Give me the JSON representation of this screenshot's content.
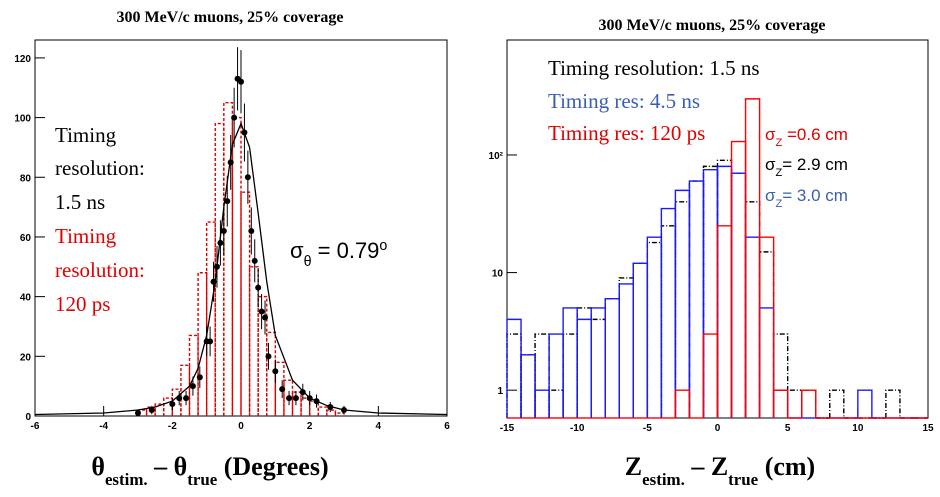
{
  "chart_data": [
    {
      "type": "scatter",
      "title": "300 MeV/c muons, 25% coverage",
      "xlabel": [
        {
          "text": "θ"
        },
        {
          "text": "estim.",
          "sub": true
        },
        {
          "text": " – θ"
        },
        {
          "text": "true",
          "sub": true
        },
        {
          "text": " (Degrees)"
        }
      ],
      "xlim": [
        -6,
        6
      ],
      "xticks": [
        -6,
        -4,
        -2,
        0,
        2,
        4,
        6
      ],
      "ylim": [
        0,
        126
      ],
      "yticks": [
        0,
        20,
        40,
        60,
        80,
        100,
        120
      ],
      "series": [
        {
          "style": "step",
          "color": "#e00000",
          "dashed": true,
          "bins": [
            -3,
            -2.75,
            -2.5,
            -2.25,
            -2,
            -1.75,
            -1.5,
            -1.25,
            -1,
            -0.75,
            -0.5,
            -0.25,
            0,
            0.25,
            0.5,
            0.75,
            1,
            1.25,
            1.5,
            1.75,
            2,
            2.25,
            2.5,
            2.75,
            3
          ],
          "values": [
            2,
            3,
            4,
            6,
            9,
            17,
            27,
            48,
            65,
            98,
            105,
            100,
            75,
            50,
            40,
            28,
            18,
            12,
            8,
            6,
            5,
            3,
            2,
            1
          ]
        },
        {
          "style": "line",
          "color": "#000000",
          "x": [
            -6,
            -4,
            -3,
            -2.5,
            -2,
            -1.5,
            -1.25,
            -1,
            -0.75,
            -0.5,
            -0.25,
            0,
            0.25,
            0.5,
            0.75,
            1,
            1.5,
            2,
            2.5,
            3,
            4,
            6
          ],
          "values": [
            0.5,
            1,
            2,
            3,
            5,
            10,
            16,
            27,
            45,
            70,
            91,
            98,
            90,
            68,
            45,
            27,
            12,
            6,
            3.5,
            2,
            1,
            0.5
          ]
        },
        {
          "style": "points",
          "color": "#000000",
          "x": [
            -3,
            -2.6,
            -2,
            -1.8,
            -1.6,
            -1.4,
            -1.2,
            -1,
            -0.9,
            -0.8,
            -0.7,
            -0.6,
            -0.5,
            -0.4,
            -0.3,
            -0.2,
            -0.1,
            0,
            0.1,
            0.2,
            0.3,
            0.4,
            0.5,
            0.6,
            0.7,
            0.8,
            1,
            1.2,
            1.4,
            1.6,
            1.8,
            2,
            2.2,
            2.6,
            3
          ],
          "values": [
            1,
            2,
            4,
            6,
            6,
            10,
            13,
            25,
            25,
            45,
            50,
            58,
            62,
            72,
            85,
            100,
            113,
            112,
            95,
            80,
            62,
            52,
            43,
            35,
            33,
            20,
            15,
            9,
            6,
            6,
            8,
            6,
            5,
            3,
            2
          ],
          "errors": [
            1,
            1.4,
            2,
            2.4,
            2.4,
            3.2,
            3.6,
            5,
            5,
            6.7,
            7,
            7.6,
            7.9,
            8.5,
            9.2,
            10,
            10.6,
            10.6,
            9.7,
            8.9,
            7.9,
            7.2,
            6.6,
            5.9,
            5.7,
            4.5,
            3.9,
            3,
            2.4,
            2.4,
            2.8,
            2.4,
            2.2,
            1.7,
            1.4
          ]
        }
      ],
      "annotations": [
        {
          "text": "Timing",
          "color": "#000000"
        },
        {
          "text": "resolution:",
          "color": "#000000"
        },
        {
          "text": "1.5 ns",
          "color": "#000000"
        },
        {
          "text": "Timing",
          "color": "#e00000"
        },
        {
          "text": "resolution:",
          "color": "#e00000"
        },
        {
          "text": "120 ps",
          "color": "#e00000"
        }
      ],
      "sigmas": [
        {
          "color": "#000000",
          "parts": [
            {
              "text": "σ"
            },
            {
              "text": "θ",
              "sub": true
            },
            {
              "text": " = 0.79"
            },
            {
              "text": "o",
              "sup": true
            }
          ]
        }
      ]
    },
    {
      "type": "histogram",
      "title": "300 MeV/c muons, 25% coverage",
      "log_y": true,
      "xlabel": [
        {
          "text": "Z"
        },
        {
          "text": "estim.",
          "sub": true
        },
        {
          "text": " – Z"
        },
        {
          "text": "true",
          "sub": true
        },
        {
          "text": " (cm)"
        }
      ],
      "xlim": [
        -15,
        15
      ],
      "xticks": [
        -15,
        -10,
        -5,
        0,
        5,
        10,
        15
      ],
      "ylim": [
        0.58,
        950
      ],
      "yticks": [
        1,
        10,
        {
          "value": 100,
          "label": "10²"
        }
      ],
      "series": [
        {
          "style": "step",
          "color": "#000000",
          "dashed": "dashdot",
          "bins": [
            -15,
            -14,
            -13,
            -12,
            -11,
            -10,
            -9,
            -8,
            -7,
            -6,
            -5,
            -4,
            -3,
            -2,
            -1,
            0,
            1,
            2,
            3,
            4,
            5,
            6,
            7,
            8,
            9,
            10,
            11,
            12,
            13,
            14,
            15
          ],
          "values": [
            3,
            2,
            3,
            1,
            3,
            5,
            4,
            6,
            9,
            12,
            18,
            25,
            40,
            60,
            80,
            90,
            70,
            40,
            15,
            3,
            1,
            1,
            0,
            1,
            0,
            0,
            0,
            1,
            0,
            0
          ]
        },
        {
          "style": "step",
          "color": "#1a1aff",
          "bins": [
            -15,
            -14,
            -13,
            -12,
            -11,
            -10,
            -9,
            -8,
            -7,
            -6,
            -5,
            -4,
            -3,
            -2,
            -1,
            0,
            1,
            2,
            3,
            4,
            5,
            6,
            7,
            8,
            9,
            10,
            11,
            12,
            13,
            14,
            15
          ],
          "values": [
            4,
            2,
            1,
            3,
            5,
            4,
            5,
            6,
            8,
            12,
            20,
            35,
            50,
            60,
            75,
            80,
            70,
            20,
            5,
            1,
            0,
            0,
            0,
            0,
            0,
            1,
            0,
            0,
            0,
            0
          ]
        },
        {
          "style": "step",
          "color": "#ff0000",
          "bins": [
            -15,
            -14,
            -13,
            -12,
            -11,
            -10,
            -9,
            -8,
            -7,
            -6,
            -5,
            -4,
            -3,
            -2,
            -1,
            0,
            1,
            2,
            3,
            4,
            5,
            6,
            7,
            8,
            9,
            10,
            11,
            12,
            13,
            14,
            15
          ],
          "values": [
            0,
            0,
            0,
            0,
            0,
            0,
            0,
            0,
            0,
            0,
            0,
            0,
            1,
            0,
            3,
            25,
            130,
            300,
            20,
            1,
            0,
            1,
            0,
            0,
            0,
            0,
            0,
            0,
            0,
            0
          ]
        }
      ],
      "annotations": [
        {
          "text": "Timing resolution: 1.5 ns",
          "color": "#000000"
        },
        {
          "text": "Timing res: 4.5 ns",
          "color": "#3a5fb0"
        },
        {
          "text": "Timing res: 120 ps",
          "color": "#e00000"
        }
      ],
      "sigmas": [
        {
          "color": "#e00000",
          "parts": [
            {
              "text": "σ"
            },
            {
              "text": "Z",
              "sub": true
            },
            {
              "text": " =0.6 cm"
            }
          ]
        },
        {
          "color": "#000000",
          "parts": [
            {
              "text": "σ"
            },
            {
              "text": "Z",
              "sub": true
            },
            {
              "text": "= 2.9 cm"
            }
          ]
        },
        {
          "color": "#3a5fb0",
          "parts": [
            {
              "text": "σ"
            },
            {
              "text": "Z",
              "sub": true
            },
            {
              "text": "= 3.0 cm"
            }
          ]
        }
      ]
    }
  ]
}
